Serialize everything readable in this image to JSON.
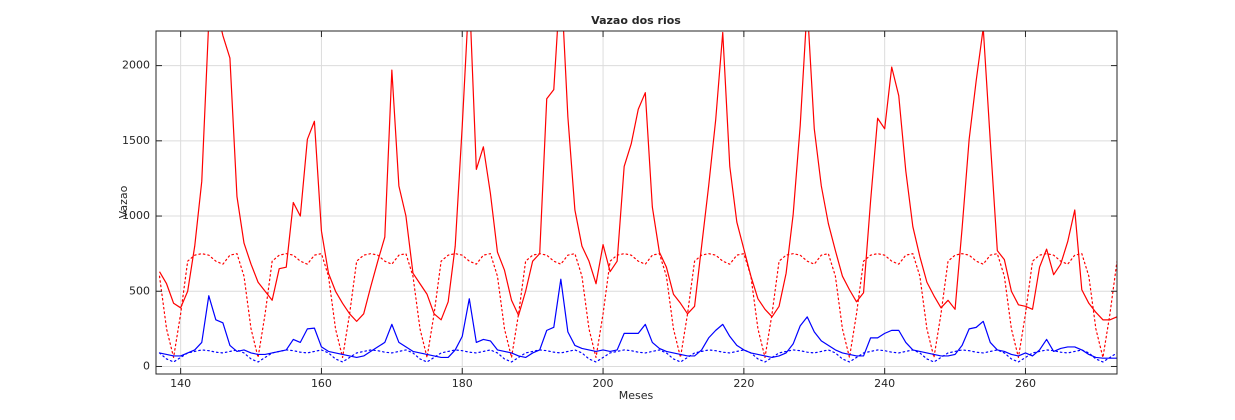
{
  "chart_data": {
    "type": "line",
    "title": "Vazao dos rios",
    "xlabel": "Meses",
    "ylabel": "Vazao",
    "x": [
      137,
      138,
      139,
      140,
      141,
      142,
      143,
      144,
      145,
      146,
      147,
      148,
      149,
      150,
      151,
      152,
      153,
      154,
      155,
      156,
      157,
      158,
      159,
      160,
      161,
      162,
      163,
      164,
      165,
      166,
      167,
      168,
      169,
      170,
      171,
      172,
      173,
      174,
      175,
      176,
      177,
      178,
      179,
      180,
      181,
      182,
      183,
      184,
      185,
      186,
      187,
      188,
      189,
      190,
      191,
      192,
      193,
      194,
      195,
      196,
      197,
      198,
      199,
      200,
      201,
      202,
      203,
      204,
      205,
      206,
      207,
      208,
      209,
      210,
      211,
      212,
      213,
      214,
      215,
      216,
      217,
      218,
      219,
      220,
      221,
      222,
      223,
      224,
      225,
      226,
      227,
      228,
      229,
      230,
      231,
      232,
      233,
      234,
      235,
      236,
      237,
      238,
      239,
      240,
      241,
      242,
      243,
      244,
      245,
      246,
      247,
      248,
      249,
      250,
      251,
      252,
      253,
      254,
      255,
      256,
      257,
      258,
      259,
      260,
      261,
      262,
      263,
      264,
      265,
      266,
      267,
      268,
      269,
      270,
      271,
      272,
      273
    ],
    "series": [
      {
        "color": "#ff0000",
        "linestyle": "solid",
        "values": [
          630,
          550,
          420,
          390,
          500,
          800,
          1230,
          2300,
          2400,
          2200,
          2050,
          1130,
          820,
          680,
          560,
          500,
          440,
          650,
          660,
          1090,
          1000,
          1510,
          1630,
          900,
          620,
          500,
          420,
          350,
          300,
          350,
          530,
          700,
          860,
          1970,
          1200,
          1000,
          620,
          550,
          480,
          350,
          310,
          430,
          800,
          1600,
          2500,
          1310,
          1460,
          1150,
          760,
          640,
          440,
          340,
          500,
          700,
          750,
          1780,
          1840,
          2600,
          1660,
          1040,
          800,
          700,
          550,
          810,
          630,
          700,
          1330,
          1480,
          1710,
          1820,
          1060,
          760,
          660,
          480,
          420,
          350,
          400,
          800,
          1200,
          1640,
          2220,
          1330,
          960,
          780,
          600,
          450,
          380,
          330,
          400,
          620,
          1010,
          1600,
          2400,
          1580,
          1200,
          950,
          770,
          600,
          510,
          430,
          490,
          1100,
          1650,
          1580,
          1990,
          1800,
          1300,
          930,
          730,
          560,
          470,
          390,
          440,
          380,
          920,
          1510,
          1900,
          2250,
          1500,
          770,
          710,
          500,
          410,
          400,
          380,
          660,
          780,
          610,
          680,
          830,
          1040,
          510,
          420,
          360,
          310,
          310,
          330
        ]
      },
      {
        "color": "#ff0000",
        "linestyle": "dotted",
        "values": [
          600,
          250,
          60,
          350,
          700,
          740,
          750,
          740,
          700,
          680,
          740,
          750,
          600,
          250,
          60,
          350,
          700,
          740,
          750,
          740,
          700,
          680,
          740,
          750,
          600,
          250,
          60,
          350,
          700,
          740,
          750,
          740,
          700,
          680,
          740,
          750,
          600,
          250,
          60,
          350,
          700,
          740,
          750,
          740,
          700,
          680,
          740,
          750,
          600,
          250,
          60,
          350,
          700,
          740,
          750,
          740,
          700,
          680,
          740,
          750,
          600,
          250,
          60,
          350,
          700,
          740,
          750,
          740,
          700,
          680,
          740,
          750,
          600,
          250,
          60,
          350,
          700,
          740,
          750,
          740,
          700,
          680,
          740,
          750,
          600,
          250,
          60,
          350,
          700,
          740,
          750,
          740,
          700,
          680,
          740,
          750,
          600,
          250,
          60,
          350,
          700,
          740,
          750,
          740,
          700,
          680,
          740,
          750,
          600,
          250,
          60,
          350,
          700,
          740,
          750,
          740,
          700,
          680,
          740,
          750,
          600,
          250,
          60,
          350,
          700,
          740,
          750,
          740,
          700,
          680,
          740,
          750,
          600,
          250,
          60,
          350,
          700
        ]
      },
      {
        "color": "#0000ff",
        "linestyle": "solid",
        "values": [
          90,
          80,
          70,
          70,
          90,
          110,
          160,
          470,
          310,
          290,
          140,
          100,
          110,
          90,
          80,
          80,
          90,
          100,
          110,
          180,
          160,
          250,
          255,
          130,
          100,
          90,
          80,
          70,
          60,
          70,
          100,
          130,
          160,
          280,
          160,
          130,
          100,
          90,
          80,
          70,
          60,
          60,
          110,
          200,
          450,
          160,
          180,
          170,
          110,
          100,
          90,
          70,
          60,
          90,
          110,
          240,
          260,
          580,
          230,
          140,
          120,
          110,
          100,
          110,
          100,
          110,
          220,
          220,
          220,
          280,
          160,
          120,
          100,
          90,
          80,
          70,
          70,
          110,
          190,
          240,
          280,
          200,
          140,
          110,
          90,
          80,
          70,
          60,
          70,
          90,
          150,
          270,
          330,
          230,
          170,
          140,
          110,
          90,
          80,
          70,
          70,
          190,
          190,
          220,
          240,
          240,
          160,
          110,
          100,
          90,
          80,
          70,
          70,
          80,
          140,
          250,
          260,
          300,
          160,
          110,
          100,
          80,
          70,
          90,
          70,
          110,
          180,
          100,
          120,
          130,
          130,
          110,
          80,
          60,
          55,
          55,
          55
        ]
      },
      {
        "color": "#0000ff",
        "linestyle": "dotted",
        "values": [
          90,
          50,
          30,
          60,
          90,
          100,
          110,
          105,
          95,
          90,
          100,
          110,
          90,
          50,
          30,
          60,
          90,
          100,
          110,
          105,
          95,
          90,
          100,
          110,
          90,
          50,
          30,
          60,
          90,
          100,
          110,
          105,
          95,
          90,
          100,
          110,
          90,
          50,
          30,
          60,
          90,
          100,
          110,
          105,
          95,
          90,
          100,
          110,
          90,
          50,
          30,
          60,
          90,
          100,
          110,
          105,
          95,
          90,
          100,
          110,
          90,
          50,
          30,
          60,
          90,
          100,
          110,
          105,
          95,
          90,
          100,
          110,
          90,
          50,
          30,
          60,
          90,
          100,
          110,
          105,
          95,
          90,
          100,
          110,
          90,
          50,
          30,
          60,
          90,
          100,
          110,
          105,
          95,
          90,
          100,
          110,
          90,
          50,
          30,
          60,
          90,
          100,
          110,
          105,
          95,
          90,
          100,
          110,
          90,
          50,
          30,
          60,
          90,
          100,
          110,
          105,
          95,
          90,
          100,
          110,
          90,
          50,
          30,
          60,
          90,
          100,
          110,
          105,
          95,
          90,
          100,
          110,
          90,
          50,
          30,
          60,
          90
        ]
      }
    ],
    "xlim": [
      136.5,
      273
    ],
    "ylim": [
      -50,
      2230
    ],
    "xticks": [
      140,
      160,
      180,
      200,
      220,
      240,
      260
    ],
    "yticks": [
      0,
      500,
      1000,
      1500,
      2000
    ],
    "grid": true
  }
}
